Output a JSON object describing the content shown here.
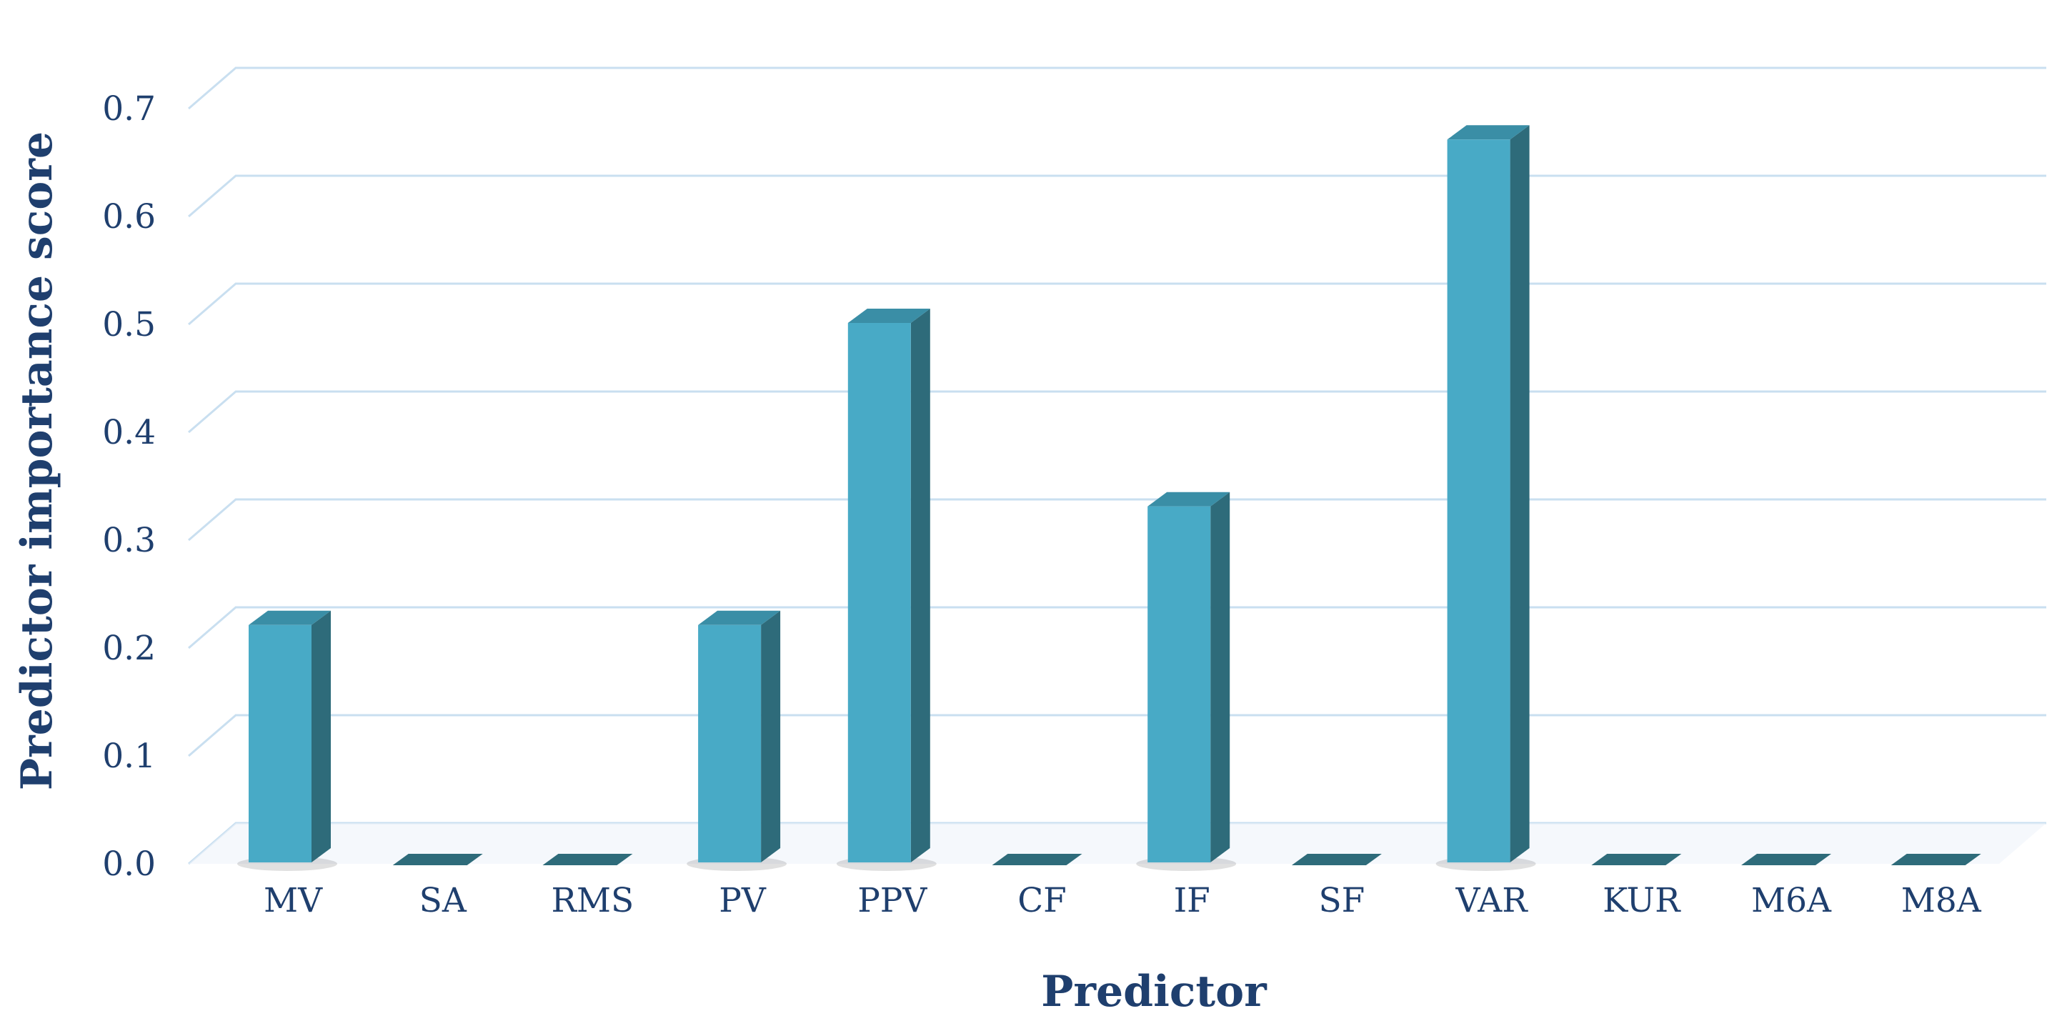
{
  "chart_data": {
    "type": "bar",
    "title": "",
    "xlabel": "Predictor",
    "ylabel": "Predictor importance score",
    "categories": [
      "MV",
      "SA",
      "RMS",
      "PV",
      "PPV",
      "CF",
      "IF",
      "SF",
      "VAR",
      "KUR",
      "M6A",
      "M8A"
    ],
    "values": [
      0.22,
      0.0,
      0.0,
      0.22,
      0.5,
      0.0,
      0.33,
      0.0,
      0.67,
      0.0,
      0.0,
      0.0
    ],
    "ylim": [
      0,
      0.7
    ],
    "yticks": [
      "0.0",
      "0.1",
      "0.2",
      "0.3",
      "0.4",
      "0.5",
      "0.6",
      "0.7"
    ],
    "grid": true,
    "style": "3d",
    "colors": {
      "bar_front": "#48aac6",
      "bar_side": "#2e6b7a",
      "bar_top": "#3a8ea6",
      "grid": "#c9dff0",
      "text": "#1f3f6e"
    }
  }
}
